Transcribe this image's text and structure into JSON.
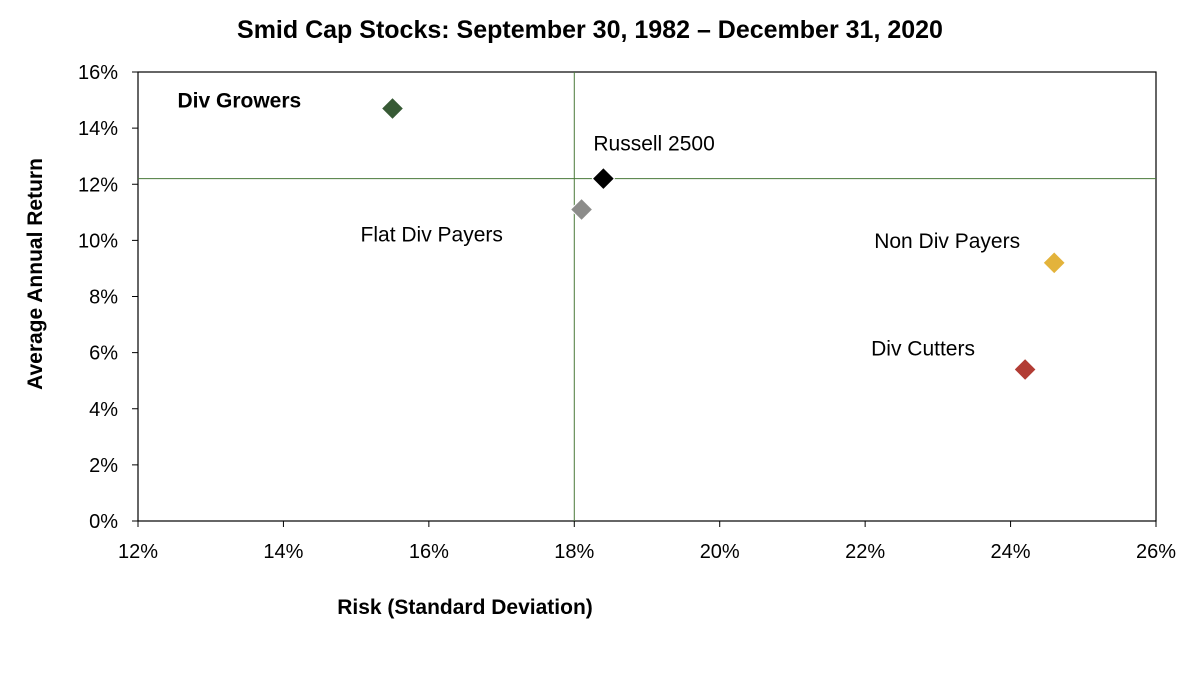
{
  "chart_data": {
    "type": "scatter",
    "title": "Smid Cap Stocks: September 30, 1982 – December 31, 2020",
    "xlabel": "Risk (Standard Deviation)",
    "ylabel": "Average Annual Return",
    "xlim": [
      12,
      26
    ],
    "ylim": [
      0,
      16
    ],
    "x_ticks": [
      12,
      14,
      16,
      18,
      20,
      22,
      24,
      26
    ],
    "x_tick_labels": [
      "12%",
      "14%",
      "16%",
      "18%",
      "20%",
      "22%",
      "24%",
      "26%"
    ],
    "y_ticks": [
      0,
      2,
      4,
      6,
      8,
      10,
      12,
      14,
      16
    ],
    "y_tick_labels": [
      "0%",
      "2%",
      "4%",
      "6%",
      "8%",
      "10%",
      "12%",
      "14%",
      "16%"
    ],
    "grid": false,
    "legend": "none",
    "marker": "diamond",
    "reference_lines": {
      "x": 18.0,
      "y": 12.2,
      "color": "#4a7a3a"
    },
    "points": [
      {
        "label": "Div Growers",
        "x": 15.5,
        "y": 14.7,
        "color": "#375a35",
        "bold": true
      },
      {
        "label": "Russell 2500",
        "x": 18.4,
        "y": 12.2,
        "color": "#000000",
        "bold": false
      },
      {
        "label": "Flat Div Payers",
        "x": 18.1,
        "y": 11.1,
        "color": "#8c8c8a",
        "bold": false
      },
      {
        "label": "Non Div Payers",
        "x": 24.6,
        "y": 9.2,
        "color": "#e3b33b",
        "bold": false
      },
      {
        "label": "Div Cutters",
        "x": 24.2,
        "y": 5.4,
        "color": "#b23c34",
        "bold": false
      }
    ]
  }
}
